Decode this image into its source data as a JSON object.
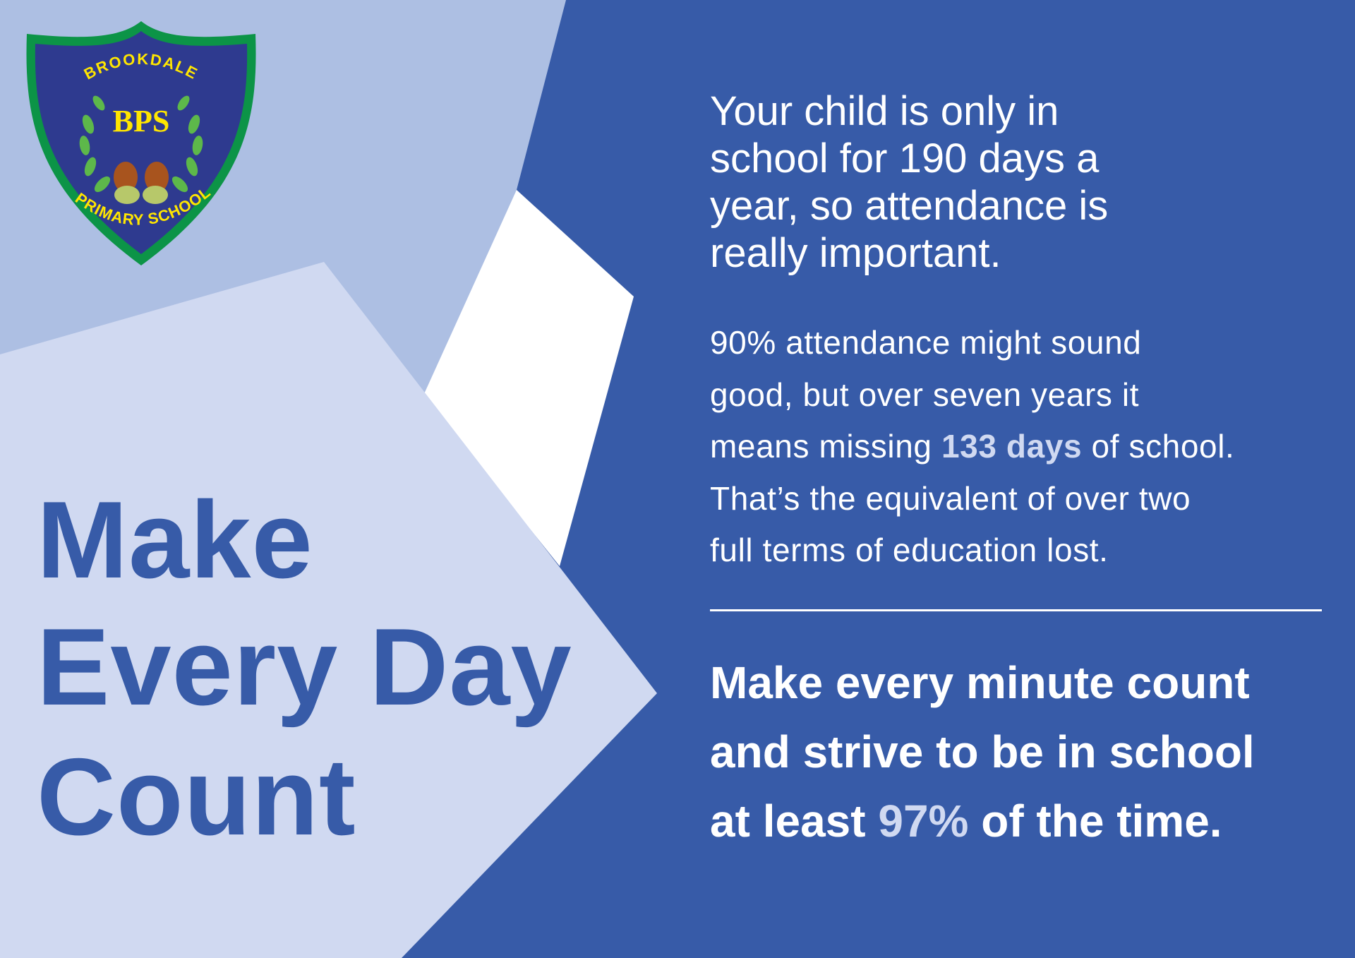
{
  "colors": {
    "dark_blue": "#375BA8",
    "mid_blue": "#ADBFE3",
    "light_blue": "#D0D9F1",
    "white": "#FFFFFF",
    "highlight": "#D0D9F1",
    "logo_navy": "#2E3A8F",
    "logo_green": "#0C9447",
    "logo_yellow": "#FFE600"
  },
  "logo": {
    "top_text": "BROOKDALE",
    "initials": "BPS",
    "bottom_text": "PRIMARY SCHOOL"
  },
  "title": {
    "lines": [
      "Make",
      "Every Day",
      "Count"
    ]
  },
  "intro": {
    "lines": [
      "Your child is only in",
      "school for 190 days a",
      "year, so attendance is",
      "really important."
    ]
  },
  "paragraph": {
    "line1": "90% attendance might sound",
    "line2": "good, but over seven years it",
    "line3_before": "means missing ",
    "line3_highlight": "133 days",
    "line3_after": " of school.",
    "line4": "That’s the equivalent of over two",
    "line5": "full terms of education lost."
  },
  "cta": {
    "line1": "Make every minute count",
    "line2": "and strive to be in school",
    "line3_before": "at least ",
    "line3_highlight": "97%",
    "line3_after": " of the time."
  }
}
